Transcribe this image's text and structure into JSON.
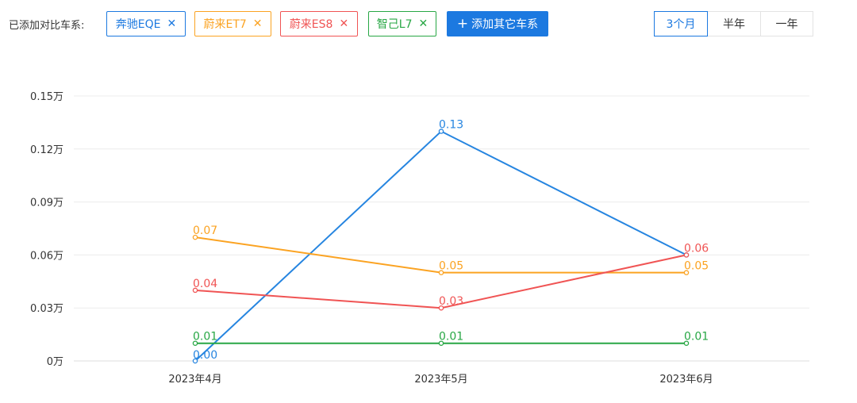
{
  "toolbar": {
    "added_label": "已添加对比车系:",
    "tags": [
      {
        "label": "奔驰EQE",
        "color": "#1c79e0"
      },
      {
        "label": "蔚来ET7",
        "color": "#fba322"
      },
      {
        "label": "蔚来ES8",
        "color": "#f05454"
      },
      {
        "label": "智己L7",
        "color": "#28a745"
      }
    ],
    "remove_icon": "close-icon",
    "add_button": {
      "label": "添加其它车系",
      "icon": "plus-icon"
    },
    "periods": [
      "3个月",
      "半年",
      "一年"
    ],
    "active_period": "3个月",
    "accent_color": "#1c79e0"
  },
  "chart_data": {
    "type": "line",
    "categories": [
      "2023年4月",
      "2023年5月",
      "2023年6月"
    ],
    "yticks": [
      "0万",
      "0.03万",
      "0.06万",
      "0.09万",
      "0.12万",
      "0.15万"
    ],
    "ylim": [
      0,
      0.15
    ],
    "grid": true,
    "series": [
      {
        "name": "奔驰EQE",
        "color": "#2685e0",
        "values": [
          0.0,
          0.13,
          0.06
        ],
        "labels": [
          "0.00",
          "0.13",
          ""
        ]
      },
      {
        "name": "蔚来ET7",
        "color": "#fba322",
        "values": [
          0.07,
          0.05,
          0.05
        ],
        "labels": [
          "0.07",
          "0.05",
          "0.05"
        ]
      },
      {
        "name": "蔚来ES8",
        "color": "#f05454",
        "values": [
          0.04,
          0.03,
          0.06
        ],
        "labels": [
          "0.04",
          "0.03",
          "0.06"
        ]
      },
      {
        "name": "智己L7",
        "color": "#28a745",
        "values": [
          0.01,
          0.01,
          0.01
        ],
        "labels": [
          "0.01",
          "0.01",
          "0.01"
        ]
      }
    ]
  }
}
